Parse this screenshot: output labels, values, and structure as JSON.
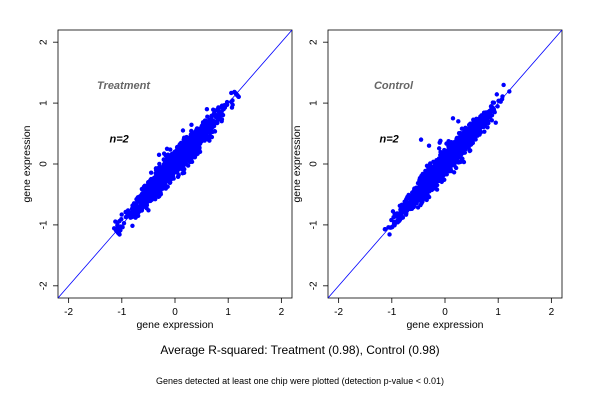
{
  "colors": {
    "points": "#0000ff",
    "diagonal": "#0000ff",
    "axes": "#000000",
    "annotation_gray": "#666666"
  },
  "chart_data": [
    {
      "type": "scatter",
      "title": "Treatment",
      "annotation": "n=2",
      "xlabel": "gene expression",
      "ylabel": "gene expression",
      "xlim": [
        -2.2,
        2.2
      ],
      "ylim": [
        -2.2,
        2.2
      ],
      "xticks": [
        -2,
        -1,
        0,
        1,
        2
      ],
      "yticks": [
        -2,
        -1,
        0,
        1,
        2
      ],
      "xtick_labels": [
        "-2",
        "-1",
        "0",
        "1",
        "2"
      ],
      "ytick_labels": [
        "-2",
        "-1",
        "0",
        "1",
        "2"
      ],
      "reference_line": "y = x",
      "grid": false,
      "point_cloud": {
        "n": 1400,
        "x_range": [
          -1.1,
          1.15
        ],
        "spread": 0.1
      },
      "notable_points": [
        {
          "x": -0.3,
          "y": 0.15
        },
        {
          "x": -0.15,
          "y": 0.25
        },
        {
          "x": 0.6,
          "y": 0.9
        },
        {
          "x": 0.15,
          "y": 0.55
        }
      ]
    },
    {
      "type": "scatter",
      "title": "Control",
      "annotation": "n=2",
      "xlabel": "gene expression",
      "ylabel": "gene expression",
      "xlim": [
        -2.2,
        2.2
      ],
      "ylim": [
        -2.2,
        2.2
      ],
      "xticks": [
        -2,
        -1,
        0,
        1,
        2
      ],
      "yticks": [
        -2,
        -1,
        0,
        1,
        2
      ],
      "xtick_labels": [
        "-2",
        "-1",
        "0",
        "1",
        "2"
      ],
      "ytick_labels": [
        "-2",
        "-1",
        "0",
        "1",
        "2"
      ],
      "reference_line": "y = x",
      "grid": false,
      "point_cloud": {
        "n": 1400,
        "x_range": [
          -1.1,
          1.2
        ],
        "spread": 0.1
      },
      "notable_points": [
        {
          "x": -0.45,
          "y": 0.4
        },
        {
          "x": -0.3,
          "y": 0.3
        },
        {
          "x": 0.15,
          "y": 0.75
        },
        {
          "x": 0.25,
          "y": 0.7
        },
        {
          "x": -0.1,
          "y": 0.35
        }
      ]
    }
  ],
  "captions": {
    "summary": "Average R-squared: Treatment (0.98), Control (0.98)",
    "footnote": "Genes detected at least one chip were plotted (detection p-value < 0.01)"
  }
}
